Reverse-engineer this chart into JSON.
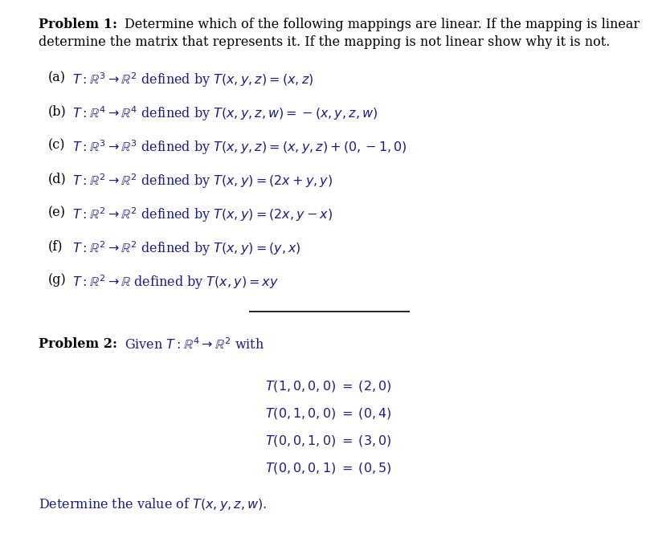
{
  "background_color": "#ffffff",
  "fig_width": 8.24,
  "fig_height": 6.8,
  "dpi": 100,
  "text_color": "#1a1a8c",
  "bold_color": "#000000",
  "fs": 11.5,
  "items": [
    {
      "label": "(a)",
      "formula": "$T:\\mathbb{R}^3 \\rightarrow \\mathbb{R}^2$ defined by $T(x, y, z) = (x, z)$"
    },
    {
      "label": "(b)",
      "formula": "$T:\\mathbb{R}^4 \\rightarrow \\mathbb{R}^4$ defined by $T(x, y, z, w) = -(x, y, z, w)$"
    },
    {
      "label": "(c)",
      "formula": "$T:\\mathbb{R}^3 \\rightarrow \\mathbb{R}^3$ defined by $T(x, y, z) = (x, y, z) + (0, -1, 0)$"
    },
    {
      "label": "(d)",
      "formula": "$T:\\mathbb{R}^2 \\rightarrow \\mathbb{R}^2$ defined by $T(x, y) = (2x + y, y)$"
    },
    {
      "label": "(e)",
      "formula": "$T:\\mathbb{R}^2 \\rightarrow \\mathbb{R}^2$ defined by $T(x, y) = (2x, y - x)$"
    },
    {
      "label": "(f)",
      "formula": "$T:\\mathbb{R}^2 \\rightarrow \\mathbb{R}^2$ defined by $T(x, y) = (y, x)$"
    },
    {
      "label": "(g)",
      "formula": "$T:\\mathbb{R}^2 \\rightarrow \\mathbb{R}$ defined by $T(x, y) = xy$"
    }
  ],
  "mappings": [
    "$T(1,0,0,0)\\; =\\; (2,0)$",
    "$T(0,1,0,0)\\; =\\; (0,4)$",
    "$T(0,0,1,0)\\; =\\; (3,0)$",
    "$T(0,0,0,1)\\; =\\; (0,5)$"
  ]
}
